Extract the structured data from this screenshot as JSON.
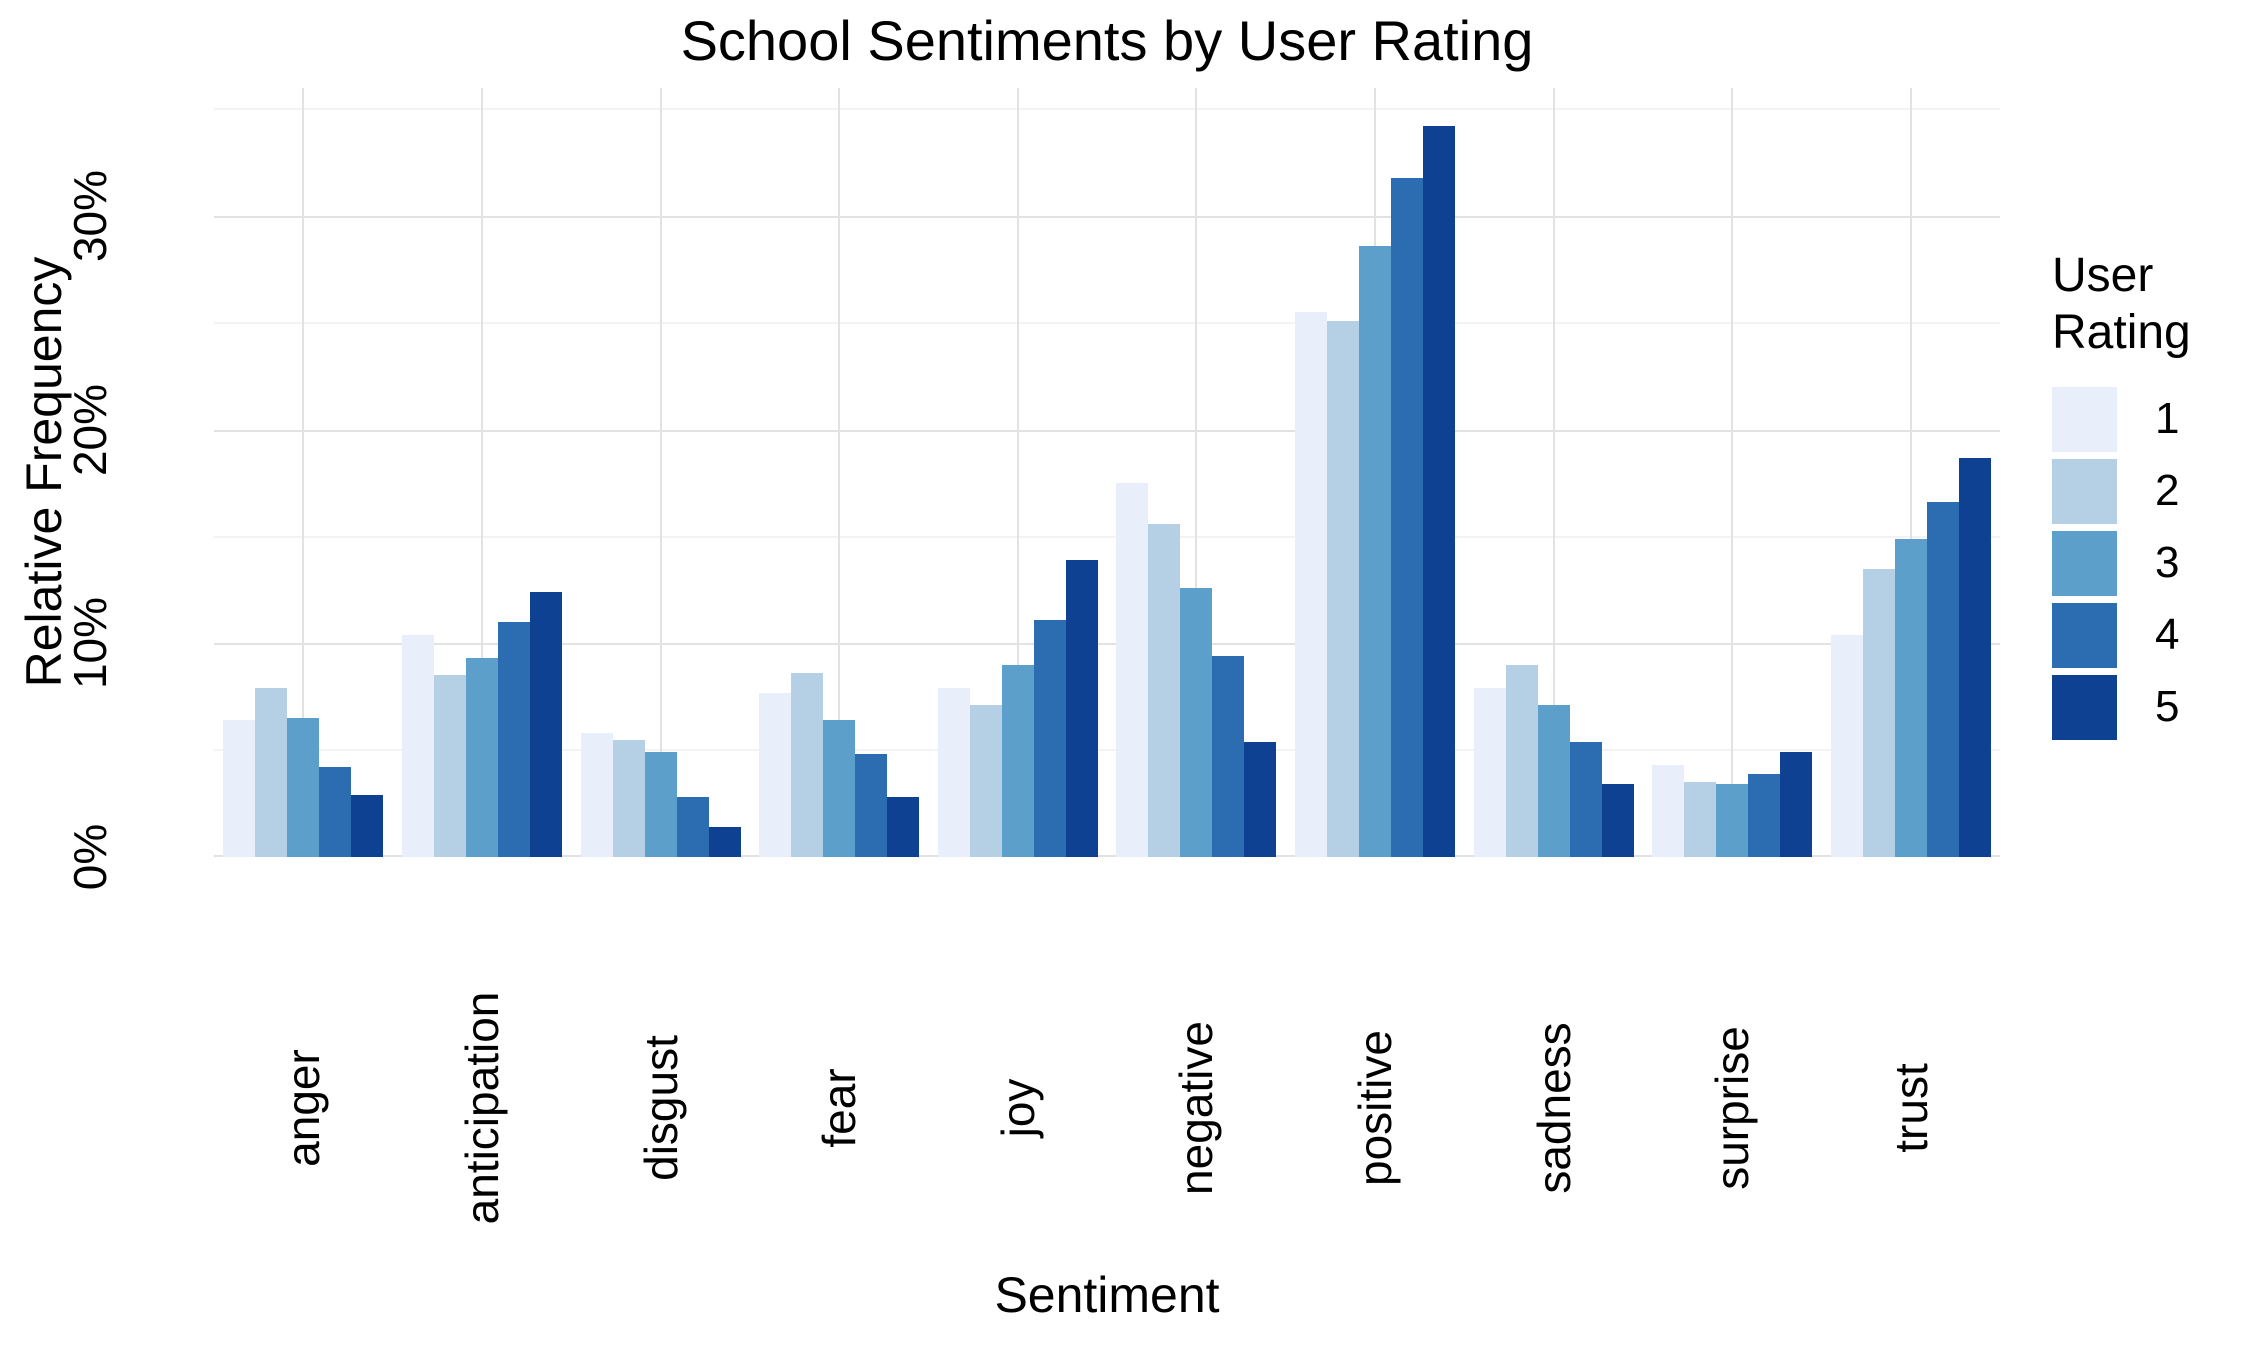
{
  "title": "School Sentiments by User Rating",
  "axes": {
    "x_title": "Sentiment",
    "y_title": "Relative Frequency",
    "y_tick_labels": [
      "0%",
      "10%",
      "20%",
      "30%"
    ]
  },
  "legend": {
    "title_lines": [
      "User",
      "Rating"
    ],
    "items": [
      {
        "label": "1",
        "color": "#E8EFFA"
      },
      {
        "label": "2",
        "color": "#B5D0E5"
      },
      {
        "label": "3",
        "color": "#5C9FCB"
      },
      {
        "label": "4",
        "color": "#2C6DB2"
      },
      {
        "label": "5",
        "color": "#0E4191"
      }
    ]
  },
  "chart_data": {
    "type": "bar",
    "title": "School Sentiments by User Rating",
    "xlabel": "Sentiment",
    "ylabel": "Relative Frequency",
    "categories": [
      "anger",
      "anticipation",
      "disgust",
      "fear",
      "joy",
      "negative",
      "positive",
      "sadness",
      "surprise",
      "trust"
    ],
    "series": [
      {
        "name": "1",
        "color": "#E8EFFA",
        "values": [
          6.4,
          10.4,
          5.8,
          7.7,
          7.9,
          17.5,
          25.5,
          7.9,
          4.3,
          10.4
        ]
      },
      {
        "name": "2",
        "color": "#B5D0E5",
        "values": [
          7.9,
          8.5,
          5.5,
          8.6,
          7.1,
          15.6,
          25.1,
          9.0,
          3.5,
          13.5
        ]
      },
      {
        "name": "3",
        "color": "#5C9FCB",
        "values": [
          6.5,
          9.3,
          4.9,
          6.4,
          9.0,
          12.6,
          28.6,
          7.1,
          3.4,
          14.9
        ]
      },
      {
        "name": "4",
        "color": "#2C6DB2",
        "values": [
          4.2,
          11.0,
          2.8,
          4.8,
          11.1,
          9.4,
          31.8,
          5.4,
          3.9,
          16.6
        ]
      },
      {
        "name": "5",
        "color": "#0E4191",
        "values": [
          2.9,
          12.4,
          1.4,
          2.8,
          13.9,
          5.4,
          34.2,
          3.4,
          4.9,
          18.7
        ]
      }
    ],
    "y_unit": "%",
    "ylim": [
      0,
      36
    ],
    "y_major_gridlines": [
      0,
      10,
      20,
      30
    ],
    "y_minor_gridlines": [
      5,
      15,
      25,
      35
    ],
    "grid": true,
    "legend_position": "right",
    "legend_title": "User Rating",
    "bar_orientation": "vertical-grouped"
  }
}
